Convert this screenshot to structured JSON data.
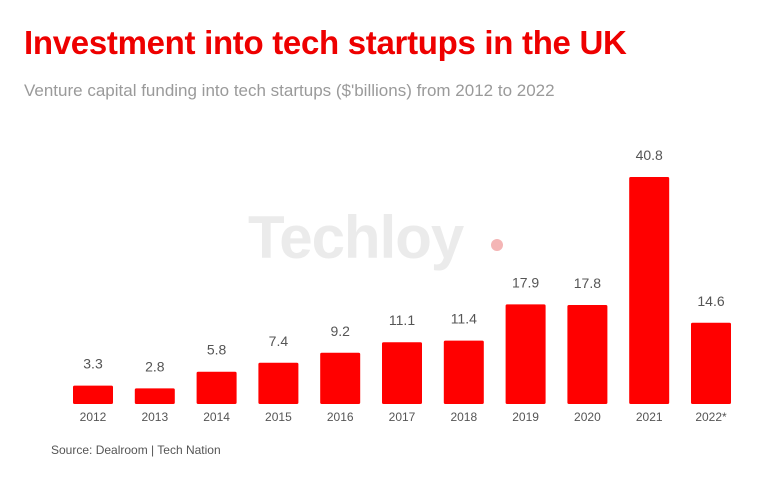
{
  "header": {
    "title": "Investment into tech startups in the UK",
    "subtitle": "Venture capital funding into tech startups ($'billions) from 2012 to 2022"
  },
  "watermark": {
    "brand": "Techloy",
    "accent_color": "#f4b5b5"
  },
  "footer": {
    "source": "Source: Dealroom | Tech Nation"
  },
  "colors": {
    "bar": "#ff0000",
    "title": "#ee0000",
    "label": "#555555"
  },
  "chart_data": {
    "type": "bar",
    "title": "Investment into tech startups in the UK",
    "subtitle": "Venture capital funding into tech startups ($'billions) from 2012 to 2022",
    "xlabel": "",
    "ylabel": "",
    "categories": [
      "2012",
      "2013",
      "2014",
      "2015",
      "2016",
      "2017",
      "2018",
      "2019",
      "2020",
      "2021",
      "2022*"
    ],
    "values": [
      3.3,
      2.8,
      5.8,
      7.4,
      9.2,
      11.1,
      11.4,
      17.9,
      17.8,
      40.8,
      14.6
    ],
    "value_labels": [
      "3.3",
      "2.8",
      "5.8",
      "7.4",
      "9.2",
      "11.1",
      "11.4",
      "17.9",
      "17.8",
      "40.8",
      "14.6"
    ],
    "ylim": [
      0,
      40.8
    ],
    "grid": false,
    "legend": "none"
  }
}
